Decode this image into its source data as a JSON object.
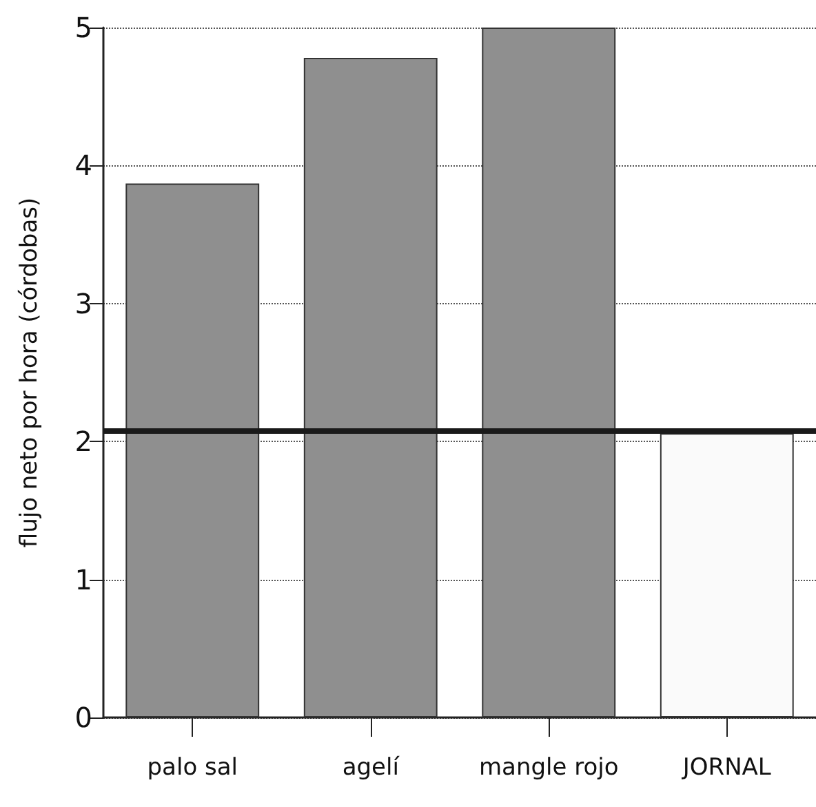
{
  "chart_data": {
    "type": "bar",
    "ylabel": "flujo neto por hora (córdobas)",
    "categories": [
      "palo sal",
      "agelí",
      "mangle rojo",
      "JORNAL"
    ],
    "values": [
      3.87,
      4.78,
      5.0,
      2.06
    ],
    "colors": [
      "#8f8f8f",
      "#8f8f8f",
      "#8f8f8f",
      "#fafafa"
    ],
    "ylim": [
      0,
      5
    ],
    "yticks": [
      0,
      1,
      2,
      3,
      4,
      5
    ],
    "grid": "y",
    "ref_lines": [
      {
        "axis": "y",
        "value": 2.08,
        "color": "#1a1a1a"
      }
    ]
  }
}
